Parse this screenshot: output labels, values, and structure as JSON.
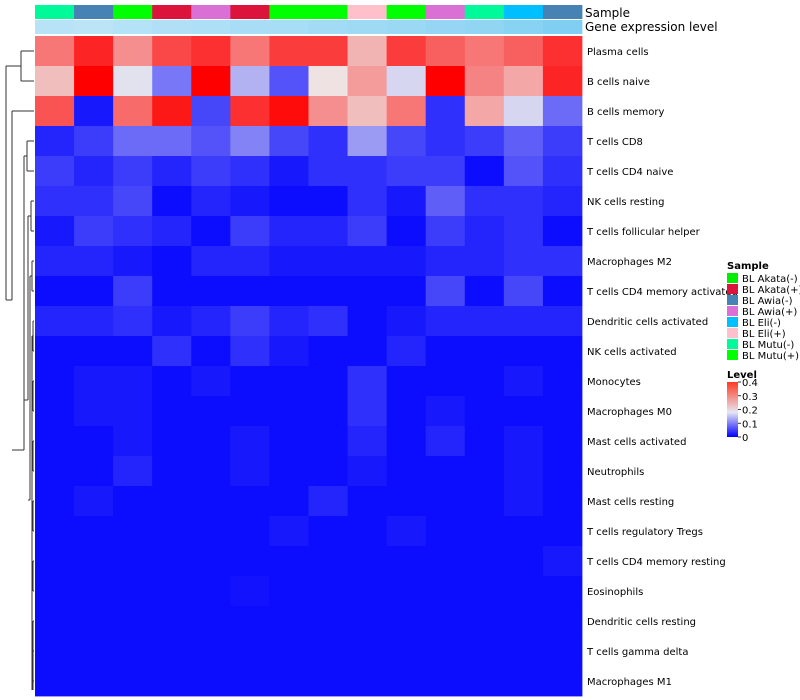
{
  "chart_data": {
    "type": "heatmap",
    "annotation_labels": [
      "Sample",
      "Gene expression level"
    ],
    "samples": [
      "BL Mutu(-)",
      "BL Awia(-)",
      "BL Mutu(+)",
      "BL Akata(+)",
      "BL Awia(+)",
      "BL Akata(+)",
      "BL Mutu(+)",
      "BL Mutu(+)",
      "BL Eli(+)",
      "BL Mutu(+)",
      "BL Awia(+)",
      "BL Mutu(-)",
      "BL Eli(-)",
      "BL Awia(-)"
    ],
    "sample_legend": {
      "title": "Sample",
      "entries": [
        {
          "label": "BL Akata(-)",
          "color": "#00ee00"
        },
        {
          "label": "BL Akata(+)",
          "color": "#dc143c"
        },
        {
          "label": "BL Awia(-)",
          "color": "#4682b4"
        },
        {
          "label": "BL Awia(+)",
          "color": "#da70d6"
        },
        {
          "label": "BL Eli(-)",
          "color": "#00bfff"
        },
        {
          "label": "BL Eli(+)",
          "color": "#ffc0cb"
        },
        {
          "label": "BL Mutu(-)",
          "color": "#00fa9a"
        },
        {
          "label": "BL Mutu(+)",
          "color": "#00ff00"
        }
      ]
    },
    "expression_level_row": [
      0.16,
      0.12,
      0.2,
      0.24,
      0.28,
      0.33,
      0.35,
      0.4,
      0.45,
      0.5,
      0.55,
      0.6,
      0.7,
      0.8
    ],
    "rows": [
      "Plasma cells",
      "B cells naive",
      "B cells memory",
      "T cells CD8",
      "T cells CD4 naive",
      "NK cells resting",
      "T cells follicular helper",
      "Macrophages M2",
      "T cells CD4 memory activated",
      "Dendritic cells activated",
      "NK cells activated",
      "Monocytes",
      "Macrophages M0",
      "Mast cells activated",
      "Neutrophils",
      "Mast cells resting",
      "T cells regulatory  Tregs",
      "T cells CD4 memory resting",
      "Eosinophils",
      "Dendritic cells resting",
      "T cells gamma delta",
      "Macrophages M1"
    ],
    "values": [
      [
        0.3,
        0.37,
        0.28,
        0.34,
        0.36,
        0.3,
        0.35,
        0.35,
        0.25,
        0.35,
        0.32,
        0.3,
        0.32,
        0.36
      ],
      [
        0.24,
        0.4,
        0.19,
        0.1,
        0.4,
        0.15,
        0.07,
        0.21,
        0.27,
        0.18,
        0.4,
        0.29,
        0.26,
        0.37
      ],
      [
        0.33,
        0.02,
        0.31,
        0.38,
        0.06,
        0.36,
        0.39,
        0.28,
        0.24,
        0.3,
        0.04,
        0.26,
        0.18,
        0.09
      ],
      [
        0.03,
        0.05,
        0.09,
        0.09,
        0.07,
        0.11,
        0.06,
        0.04,
        0.13,
        0.06,
        0.04,
        0.05,
        0.08,
        0.05
      ],
      [
        0.05,
        0.03,
        0.05,
        0.03,
        0.05,
        0.04,
        0.02,
        0.04,
        0.04,
        0.05,
        0.05,
        0.01,
        0.07,
        0.04
      ],
      [
        0.04,
        0.04,
        0.06,
        0.01,
        0.03,
        0.02,
        0.01,
        0.01,
        0.04,
        0.02,
        0.08,
        0.04,
        0.04,
        0.03
      ],
      [
        0.02,
        0.05,
        0.04,
        0.03,
        0.01,
        0.05,
        0.03,
        0.03,
        0.05,
        0.01,
        0.05,
        0.03,
        0.04,
        0.01
      ],
      [
        0.03,
        0.03,
        0.02,
        0.01,
        0.03,
        0.03,
        0.02,
        0.02,
        0.02,
        0.02,
        0.03,
        0.03,
        0.04,
        0.04
      ],
      [
        0.01,
        0.01,
        0.05,
        0.01,
        0.01,
        0.01,
        0.01,
        0.01,
        0.01,
        0.01,
        0.06,
        0.01,
        0.06,
        0.01
      ],
      [
        0.03,
        0.03,
        0.04,
        0.02,
        0.03,
        0.05,
        0.03,
        0.04,
        0.01,
        0.02,
        0.03,
        0.03,
        0.03,
        0.03
      ],
      [
        0.01,
        0.01,
        0.01,
        0.04,
        0.01,
        0.04,
        0.02,
        0.01,
        0.01,
        0.03,
        0.01,
        0.01,
        0.01,
        0.01
      ],
      [
        0.01,
        0.02,
        0.02,
        0.01,
        0.02,
        0.01,
        0.01,
        0.01,
        0.04,
        0.01,
        0.01,
        0.01,
        0.02,
        0.01
      ],
      [
        0.01,
        0.02,
        0.02,
        0.01,
        0.01,
        0.01,
        0.01,
        0.01,
        0.04,
        0.01,
        0.02,
        0.01,
        0.01,
        0.01
      ],
      [
        0.01,
        0.01,
        0.02,
        0.01,
        0.01,
        0.02,
        0.01,
        0.01,
        0.03,
        0.01,
        0.03,
        0.01,
        0.02,
        0.01
      ],
      [
        0.01,
        0.01,
        0.03,
        0.01,
        0.01,
        0.02,
        0.01,
        0.01,
        0.02,
        0.01,
        0.01,
        0.01,
        0.02,
        0.01
      ],
      [
        0.01,
        0.02,
        0.01,
        0.01,
        0.01,
        0.01,
        0.01,
        0.03,
        0.01,
        0.01,
        0.01,
        0.01,
        0.02,
        0.01
      ],
      [
        0.01,
        0.01,
        0.01,
        0.01,
        0.01,
        0.01,
        0.02,
        0.01,
        0.01,
        0.02,
        0.01,
        0.01,
        0.01,
        0.01
      ],
      [
        0.01,
        0.01,
        0.01,
        0.01,
        0.01,
        0.01,
        0.01,
        0.01,
        0.01,
        0.01,
        0.01,
        0.01,
        0.01,
        0.02
      ],
      [
        0.01,
        0.01,
        0.01,
        0.01,
        0.01,
        0.015,
        0.01,
        0.01,
        0.01,
        0.01,
        0.01,
        0.01,
        0.01,
        0.01
      ],
      [
        0.01,
        0.01,
        0.01,
        0.01,
        0.01,
        0.01,
        0.01,
        0.01,
        0.01,
        0.01,
        0.01,
        0.01,
        0.01,
        0.01
      ],
      [
        0.01,
        0.01,
        0.01,
        0.01,
        0.01,
        0.01,
        0.01,
        0.01,
        0.01,
        0.01,
        0.01,
        0.01,
        0.01,
        0.01
      ],
      [
        0.01,
        0.01,
        0.01,
        0.01,
        0.01,
        0.01,
        0.01,
        0.01,
        0.01,
        0.01,
        0.01,
        0.01,
        0.01,
        0.01
      ]
    ],
    "color_scale": {
      "title": "Level",
      "ticks": [
        "0.4",
        "0.3",
        "0.2",
        "0.1",
        "0"
      ],
      "range": [
        0,
        0.4
      ],
      "colors": [
        "#0000ff",
        "#eeeeee",
        "#ff0000"
      ]
    },
    "row_dendrogram": true
  }
}
